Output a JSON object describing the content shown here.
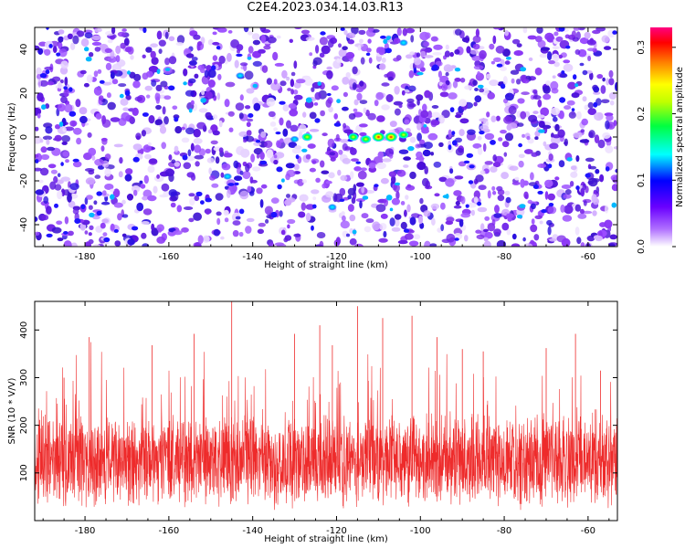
{
  "title": "C2E4.2023.034.14.03.R13",
  "colors": {
    "snr_line": "#ee2b2b",
    "background": "#ffffff",
    "axis": "#000000",
    "spectrogram_base": "#6a1fe0",
    "spectrogram_light": "#e9d6ff"
  },
  "chart_data": [
    {
      "type": "heatmap",
      "xlabel": "Height of straight line (km)",
      "ylabel": "Frequency (Hz)",
      "xlim": [
        -192,
        -53
      ],
      "ylim": [
        -50,
        50
      ],
      "x_ticks": [
        -180,
        -160,
        -140,
        -120,
        -100,
        -80,
        -60
      ],
      "x_tick_labels": [
        "-180",
        "-160",
        "-140",
        "-120",
        "-100",
        "-80",
        "-60"
      ],
      "y_ticks": [
        -40,
        -20,
        0,
        20,
        40
      ],
      "y_tick_labels": [
        "-40",
        "-20",
        "0",
        "20",
        "40"
      ],
      "colorbar": {
        "label": "Normalized spectral amplitude",
        "range": [
          0,
          0.33
        ],
        "ticks": [
          0.0,
          0.1,
          0.2,
          0.3
        ],
        "tick_labels": [
          "0.0",
          "0.1",
          "0.2",
          "0.3"
        ],
        "colormap": [
          "#ffffff",
          "#8a2be2",
          "#0000ff",
          "#00ffff",
          "#00ff00",
          "#ffff00",
          "#ff8000",
          "#ff0000",
          "#ff0080"
        ]
      },
      "hotspots": [
        {
          "x": -110,
          "y": 0,
          "value": 0.33
        },
        {
          "x": -107,
          "y": 0,
          "value": 0.33
        },
        {
          "x": -116,
          "y": 0,
          "value": 0.22
        },
        {
          "x": -113,
          "y": -1,
          "value": 0.15
        },
        {
          "x": -104,
          "y": 1,
          "value": 0.16
        },
        {
          "x": -127,
          "y": 0,
          "value": 0.18
        },
        {
          "x": -130,
          "y": -1,
          "value": 0.13
        },
        {
          "x": -143,
          "y": 28,
          "value": 0.12
        },
        {
          "x": -146,
          "y": -18,
          "value": 0.12
        },
        {
          "x": -104,
          "y": 43,
          "value": 0.12
        },
        {
          "x": -121,
          "y": -32,
          "value": 0.12
        }
      ],
      "grid": false
    },
    {
      "type": "line",
      "xlabel": "Height of straight line (km)",
      "ylabel": "SNR (10 * V/V)",
      "xlim": [
        -192,
        -53
      ],
      "ylim": [
        0,
        460
      ],
      "x_ticks": [
        -180,
        -160,
        -140,
        -120,
        -100,
        -80,
        -60
      ],
      "x_tick_labels": [
        "-180",
        "-160",
        "-140",
        "-120",
        "-100",
        "-80",
        "-60"
      ],
      "y_ticks": [
        100,
        200,
        300,
        400
      ],
      "y_tick_labels": [
        "100",
        "200",
        "300",
        "400"
      ],
      "baseline_mean": 125,
      "peaks": [
        {
          "x": -185,
          "y": 300
        },
        {
          "x": -179,
          "y": 385
        },
        {
          "x": -164,
          "y": 368
        },
        {
          "x": -154,
          "y": 392
        },
        {
          "x": -145,
          "y": 460
        },
        {
          "x": -130,
          "y": 392
        },
        {
          "x": -124,
          "y": 410
        },
        {
          "x": -121,
          "y": 368
        },
        {
          "x": -115,
          "y": 450
        },
        {
          "x": -109,
          "y": 425
        },
        {
          "x": -102,
          "y": 430
        },
        {
          "x": -96,
          "y": 385
        },
        {
          "x": -90,
          "y": 360
        },
        {
          "x": -85,
          "y": 355
        },
        {
          "x": -70,
          "y": 362
        },
        {
          "x": -63,
          "y": 392
        },
        {
          "x": -57,
          "y": 315
        }
      ],
      "grid": false
    }
  ]
}
